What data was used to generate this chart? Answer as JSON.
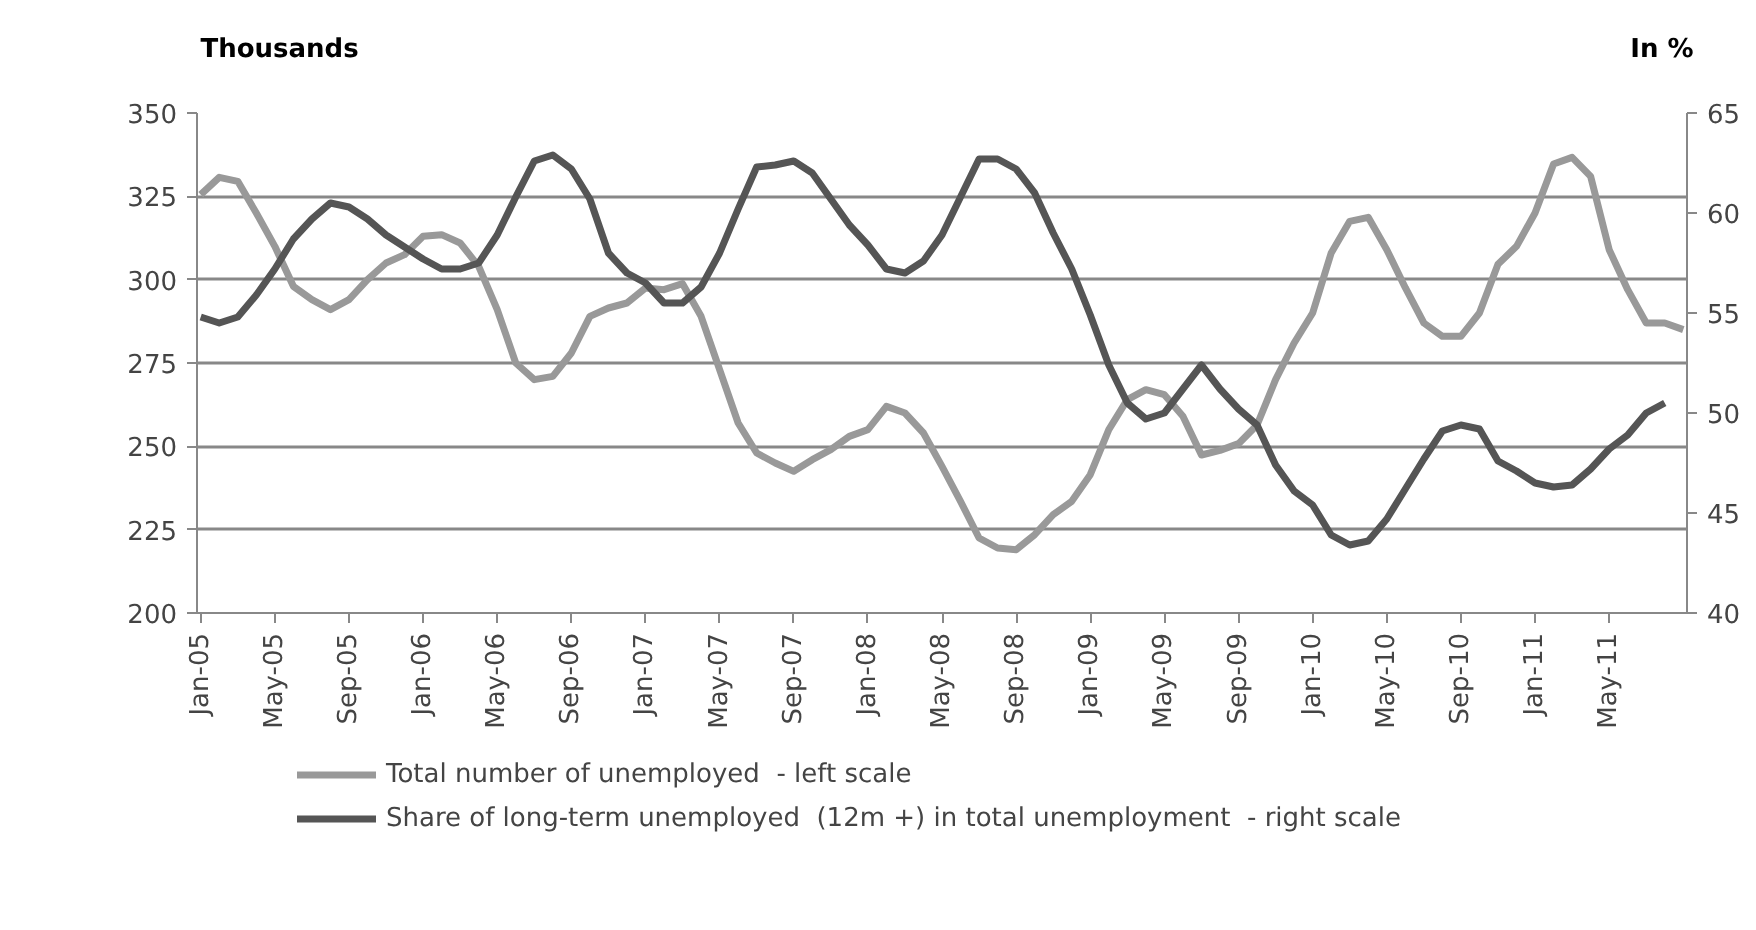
{
  "chart_data": {
    "type": "line",
    "ylabel": "Thousands",
    "y2label": "In %",
    "categories": [
      "Jan-05",
      null,
      null,
      null,
      "May-05",
      null,
      null,
      null,
      "Sep-05",
      null,
      null,
      null,
      "Jan-06",
      null,
      null,
      null,
      "May-06",
      null,
      null,
      null,
      "Sep-06",
      null,
      null,
      null,
      "Jan-07",
      null,
      null,
      null,
      "May-07",
      null,
      null,
      null,
      "Sep-07",
      null,
      null,
      null,
      "Jan-08",
      null,
      null,
      null,
      "May-08",
      null,
      null,
      null,
      "Sep-08",
      null,
      null,
      null,
      "Jan-09",
      null,
      null,
      null,
      "May-09",
      null,
      null,
      null,
      "Sep-09",
      null,
      null,
      null,
      "Jan-10",
      null,
      null,
      null,
      "May-10",
      null,
      null,
      null,
      "Sep-10",
      null,
      null,
      null,
      "Jan-11",
      null,
      null,
      null,
      "May-11",
      null,
      null,
      null,
      null
    ],
    "series": [
      {
        "name": "Total number of unemployed  - left scale",
        "color": "#999999",
        "values": [
          325.5,
          330.7,
          329.5,
          320,
          310,
          298,
          294,
          291,
          294,
          300,
          305,
          307.5,
          313,
          313.5,
          311,
          304,
          291,
          275,
          270,
          271,
          278,
          289,
          291.5,
          293,
          297.5,
          297,
          298.8,
          289,
          273,
          257,
          248,
          245,
          242.5,
          246,
          249,
          253,
          255,
          262,
          260,
          254,
          244,
          233.5,
          222.5,
          219.5,
          219,
          223.5,
          229.5,
          233.5,
          241.5,
          255,
          264,
          267,
          265.5,
          259,
          247.4,
          248.8,
          250.8,
          256.4,
          270,
          281,
          290,
          308,
          317.5,
          318.7,
          309,
          297.6,
          287,
          283,
          283,
          290,
          304.6,
          310,
          320,
          334.7,
          336.7,
          331,
          309,
          297,
          287,
          287,
          285
        ]
      },
      {
        "name": "Share of long-term unemployed  (12m +) in total unemployment  - right scale",
        "color": "#555555",
        "axis": "y2",
        "values": [
          54.8,
          54.5,
          54.8,
          55.9,
          57.2,
          58.7,
          59.7,
          60.5,
          60.3,
          59.7,
          58.9,
          58.3,
          57.7,
          57.2,
          57.2,
          57.5,
          58.9,
          60.8,
          62.6,
          62.9,
          62.2,
          60.7,
          58,
          57,
          56.5,
          55.5,
          55.5,
          56.3,
          58,
          60.2,
          62.3,
          62.4,
          62.6,
          62,
          60.7,
          59.4,
          58.4,
          57.2,
          57,
          57.6,
          58.9,
          60.8,
          62.7,
          62.7,
          62.2,
          61,
          59,
          57.2,
          54.9,
          52.4,
          50.5,
          49.7,
          50,
          51.2,
          52.4,
          51.2,
          50.2,
          49.4,
          47.4,
          46.1,
          45.4,
          43.9,
          43.4,
          43.6,
          44.7,
          46.2,
          47.7,
          49.1,
          49.4,
          49.2,
          47.6,
          47.1,
          46.5,
          46.3,
          46.4,
          47.2,
          48.2,
          48.9,
          50,
          50.5,
          null
        ]
      }
    ],
    "ylim": [
      200,
      350
    ],
    "yticks": [
      200,
      225,
      250,
      275,
      300,
      325,
      350
    ],
    "y2lim": [
      40,
      65
    ],
    "y2ticks": [
      40,
      45,
      50,
      55,
      60,
      65
    ],
    "grid": "y",
    "legend": "bottom",
    "marker": "none",
    "line_style": "solid"
  }
}
